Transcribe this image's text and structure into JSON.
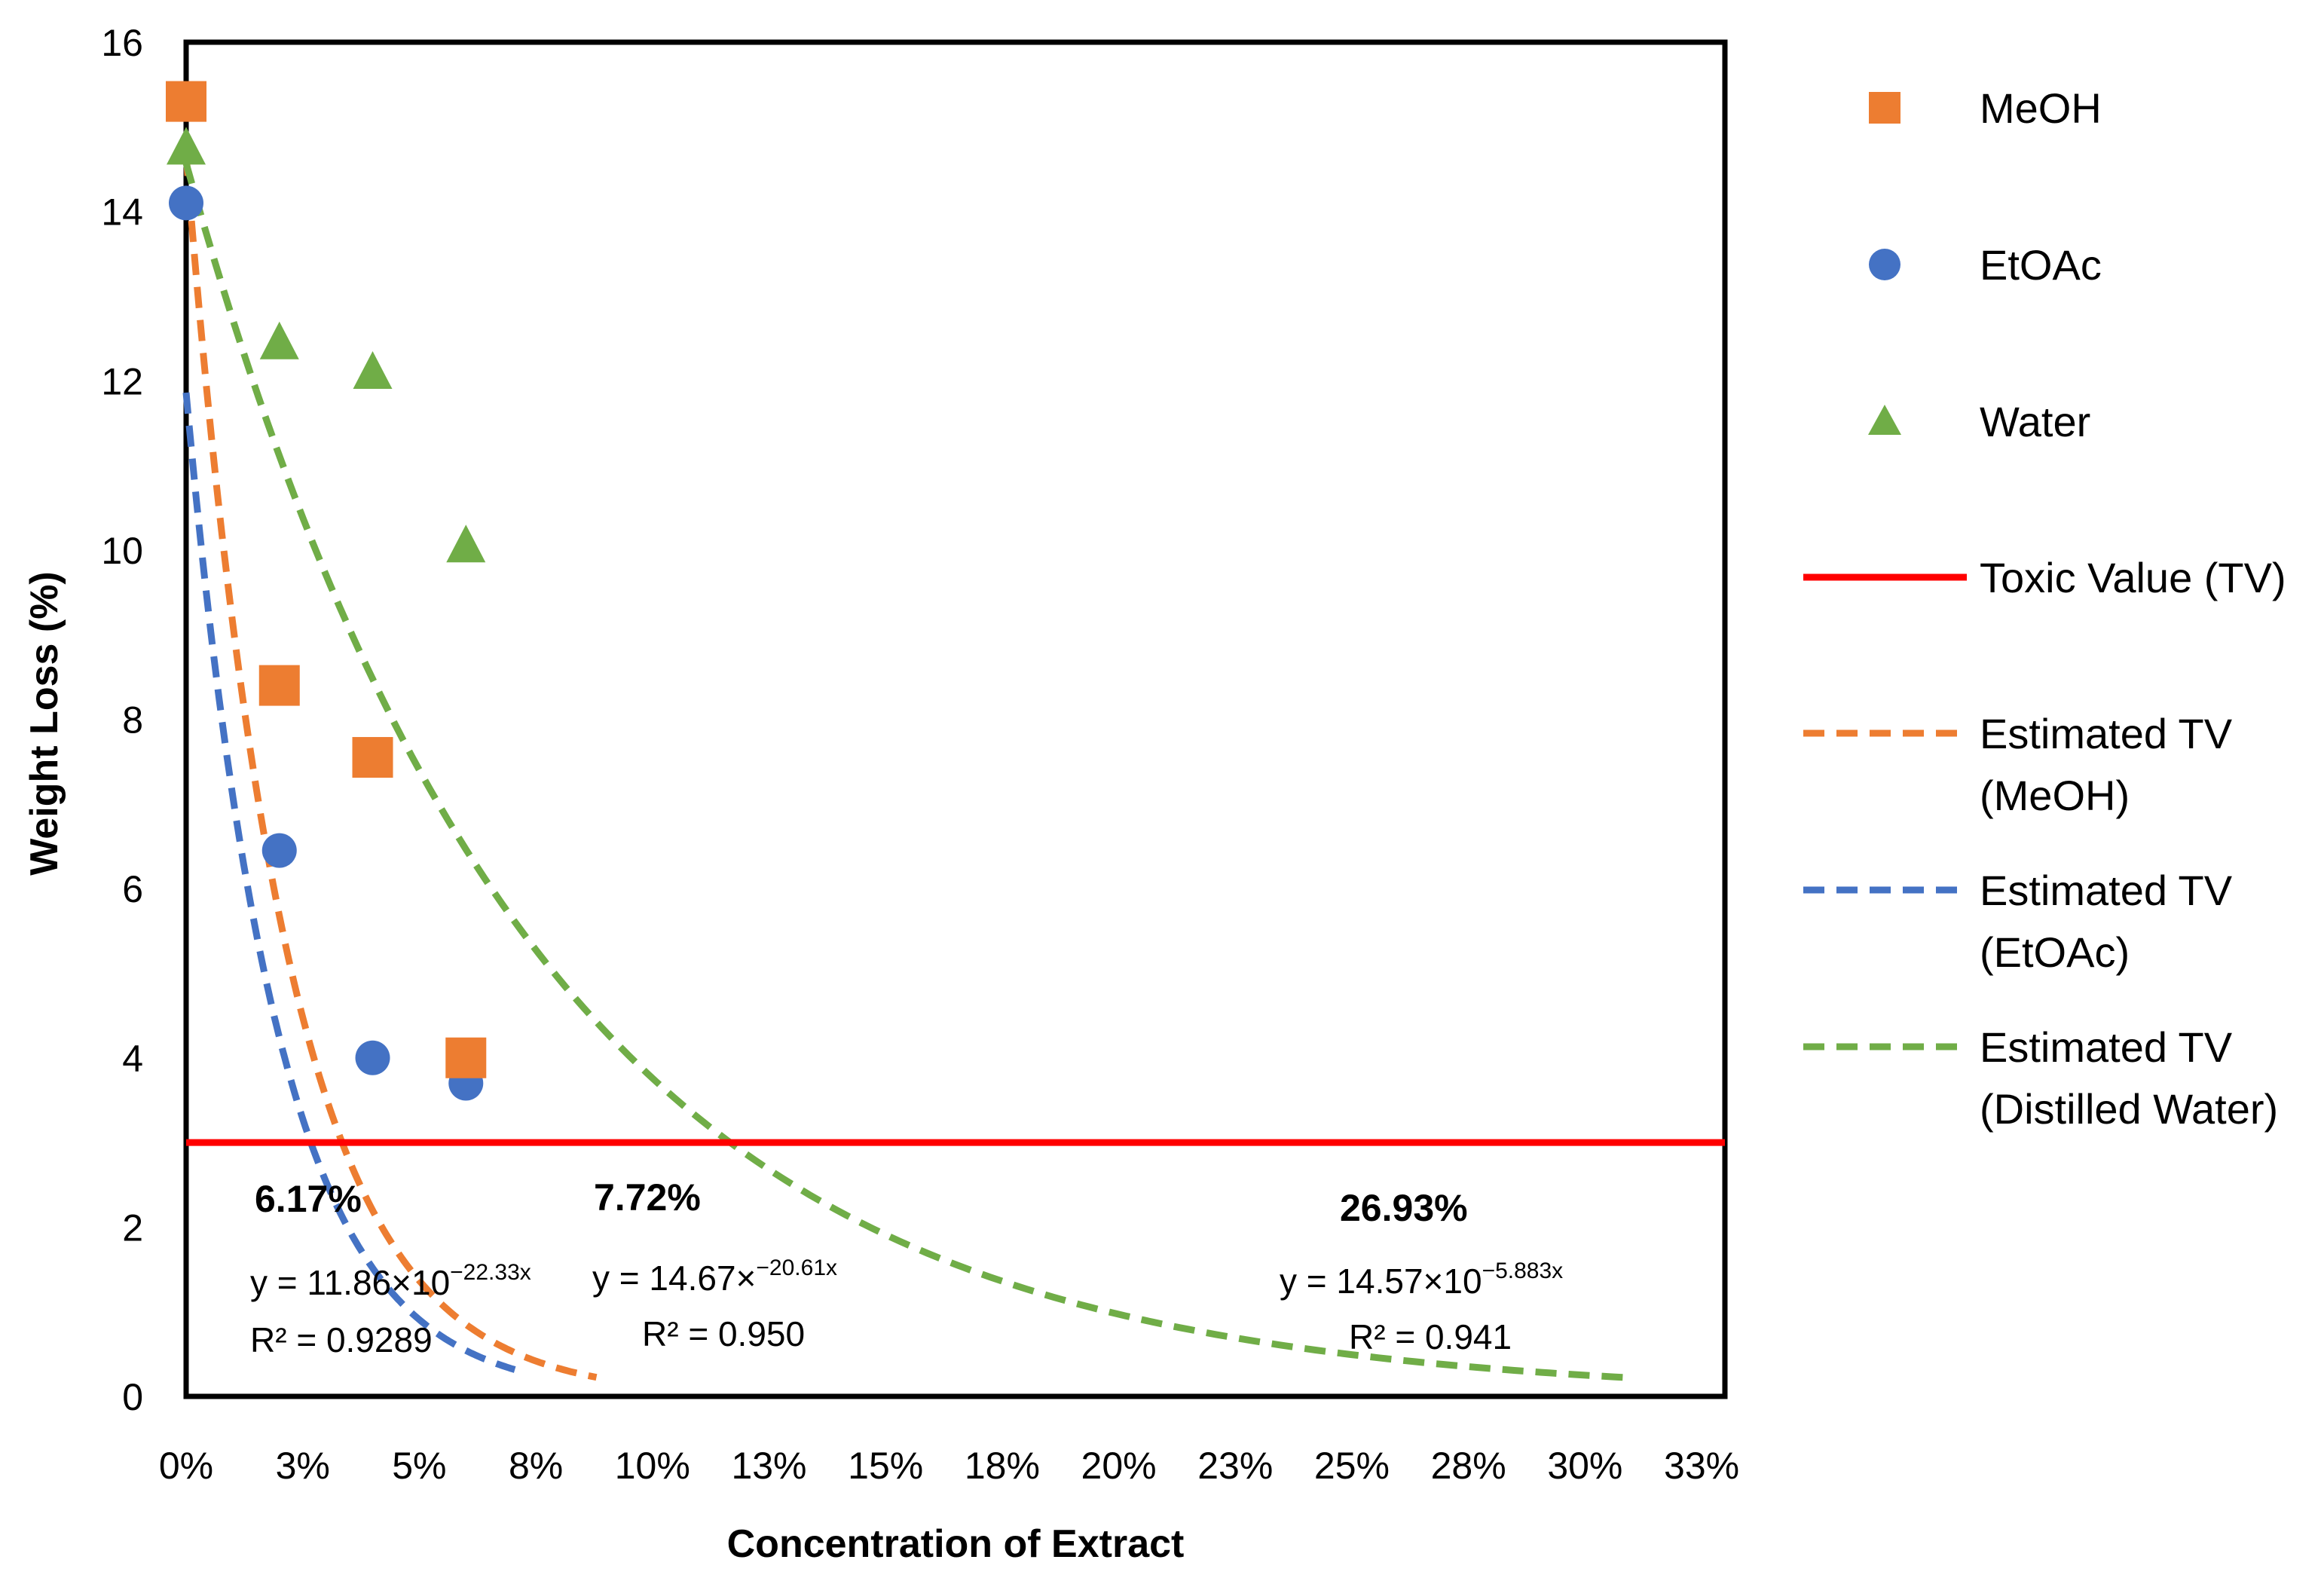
{
  "chart_data": {
    "type": "scatter",
    "xlabel": "Concentration of Extract",
    "ylabel": "Weight Loss (%)",
    "xlim": [
      0,
      0.33
    ],
    "ylim": [
      0,
      16
    ],
    "x_ticks": [
      0.0,
      0.025,
      0.05,
      0.075,
      0.1,
      0.125,
      0.15,
      0.175,
      0.2,
      0.225,
      0.25,
      0.275,
      0.3,
      0.325
    ],
    "x_tick_labels": [
      "0%",
      "3%",
      "5%",
      "8%",
      "10%",
      "13%",
      "15%",
      "18%",
      "20%",
      "23%",
      "25%",
      "28%",
      "30%",
      "33%"
    ],
    "y_ticks": [
      0,
      2,
      4,
      6,
      8,
      10,
      12,
      14,
      16
    ],
    "y_tick_labels": [
      "0",
      "2",
      "4",
      "6",
      "8",
      "10",
      "12",
      "14",
      "16"
    ],
    "toxic_value": 3,
    "series": [
      {
        "name": "MeOH",
        "marker": "square",
        "color": "#ED7D31",
        "x": [
          0.0,
          0.02,
          0.04,
          0.06
        ],
        "y": [
          15.3,
          8.4,
          7.55,
          4.0
        ]
      },
      {
        "name": "EtOAc",
        "marker": "circle",
        "color": "#4472C4",
        "x": [
          0.0,
          0.02,
          0.04,
          0.06
        ],
        "y": [
          14.1,
          6.45,
          4.0,
          3.7
        ]
      },
      {
        "name": "Water",
        "marker": "triangle",
        "color": "#70AD47",
        "x": [
          0.0,
          0.02,
          0.04,
          0.06
        ],
        "y": [
          14.75,
          12.45,
          12.1,
          10.05
        ]
      }
    ],
    "fits": [
      {
        "name": "Estimated TV (MeOH)",
        "color": "#ED7D31",
        "a": 14.67,
        "b": 20.61,
        "x_end": 0.088
      },
      {
        "name": "Estimated TV (EtOAc)",
        "color": "#4472C4",
        "a": 11.86,
        "b": 22.33,
        "x_end": 0.0705
      },
      {
        "name": "Estimated TV (Distilled Water)",
        "color": "#70AD47",
        "a": 14.57,
        "b": 5.883,
        "x_end": 0.31
      }
    ],
    "toxic_line": {
      "name": "Toxic Value (TV)",
      "color": "#FF0000",
      "y": 3
    },
    "legend": {
      "placement": "right",
      "entries": [
        {
          "kind": "square",
          "color": "#ED7D31",
          "lines": [
            "MeOH"
          ]
        },
        {
          "kind": "circle",
          "color": "#4472C4",
          "lines": [
            "EtOAc"
          ]
        },
        {
          "kind": "triangle",
          "color": "#70AD47",
          "lines": [
            "Water"
          ]
        },
        {
          "kind": "solid",
          "color": "#FF0000",
          "lines": [
            "Toxic Value (TV)"
          ]
        },
        {
          "kind": "dashed",
          "color": "#ED7D31",
          "lines": [
            "Estimated TV",
            "(MeOH)"
          ]
        },
        {
          "kind": "dashed",
          "color": "#4472C4",
          "lines": [
            "Estimated TV",
            "(EtOAc)"
          ]
        },
        {
          "kind": "dashed",
          "color": "#70AD47",
          "lines": [
            "Estimated TV",
            "(Distilled Water)"
          ]
        }
      ]
    },
    "annotations": [
      {
        "id": "etoac",
        "cutoff": "6.17%",
        "eq_base": "y = 11.86×10",
        "eq_exp": "−22.33x",
        "r2": "R² = 0.9289"
      },
      {
        "id": "meoh",
        "cutoff": "7.72%",
        "eq_base": "y = 14.67×",
        "eq_exp": "−20.61x",
        "r2": "R² = 0.950"
      },
      {
        "id": "water",
        "cutoff": "26.93%",
        "eq_base": "y = 14.57×10",
        "eq_exp": "−5.883x",
        "r2": "R² = 0.941"
      }
    ]
  }
}
